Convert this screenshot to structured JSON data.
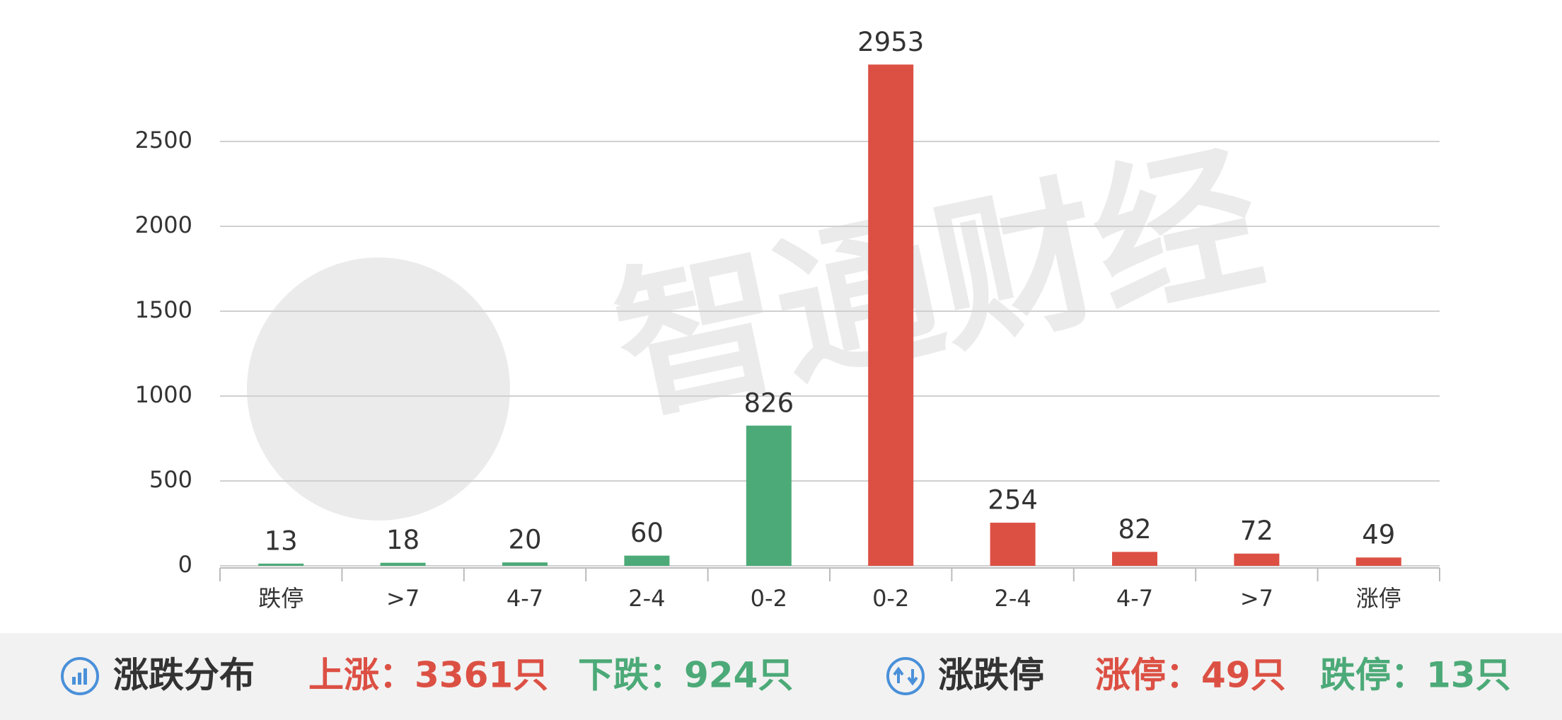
{
  "chart_data": {
    "type": "bar",
    "categories": [
      "跌停",
      ">7",
      "4-7",
      "2-4",
      "0-2",
      "0-2",
      "2-4",
      "4-7",
      ">7",
      "涨停"
    ],
    "values": [
      13,
      18,
      20,
      60,
      826,
      2953,
      254,
      82,
      72,
      49
    ],
    "colors": [
      "#4caa78",
      "#4caa78",
      "#4caa78",
      "#4caa78",
      "#4caa78",
      "#dc5044",
      "#dc5044",
      "#dc5044",
      "#dc5044",
      "#dc5044"
    ],
    "ylim": [
      0,
      3000
    ],
    "yticks": [
      0,
      500,
      1000,
      1500,
      2000,
      2500
    ],
    "grid": true
  },
  "watermark": "智通财经",
  "footer": {
    "title1": "涨跌分布",
    "up": "上涨：3361只",
    "down": "下跌：924只",
    "title2": "涨跌停",
    "limit_up": "涨停：49只",
    "limit_down": "跌停：13只"
  }
}
